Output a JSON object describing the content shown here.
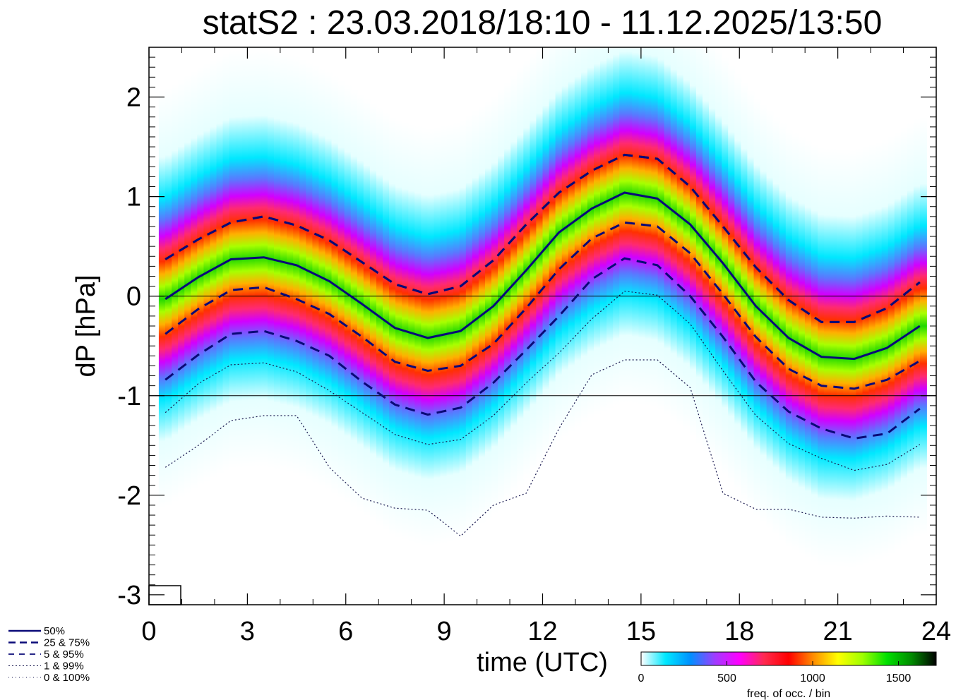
{
  "chart_data": {
    "type": "line",
    "title": "statS2 : 23.03.2018/18:10 - 11.12.2025/13:50",
    "xlabel": "time (UTC)",
    "ylabel": "dP [hPa]",
    "xlim": [
      0,
      24
    ],
    "ylim": [
      -3.1,
      2.5
    ],
    "xticks": [
      "0",
      "3",
      "6",
      "9",
      "12",
      "15",
      "18",
      "21",
      "24"
    ],
    "xtick_values": [
      0,
      3,
      6,
      9,
      12,
      15,
      18,
      21,
      24
    ],
    "yticks": [
      "2",
      "1",
      "0",
      "-1",
      "-2",
      "-3"
    ],
    "ytick_values": [
      2,
      1,
      0,
      -1,
      -2,
      -3
    ],
    "reference_lines": [
      0,
      -1
    ],
    "x": [
      0.5,
      1.5,
      2.5,
      3.5,
      4.5,
      5.5,
      6.5,
      7.5,
      8.5,
      9.5,
      10.5,
      11.5,
      12.5,
      13.5,
      14.5,
      15.5,
      16.5,
      17.5,
      18.5,
      19.5,
      20.5,
      21.5,
      22.5,
      23.5
    ],
    "series": [
      {
        "name": "50%",
        "style": "solid",
        "values": [
          -0.03,
          0.19,
          0.37,
          0.39,
          0.31,
          0.15,
          -0.08,
          -0.32,
          -0.42,
          -0.35,
          -0.1,
          0.26,
          0.64,
          0.88,
          1.04,
          0.98,
          0.72,
          0.33,
          -0.1,
          -0.42,
          -0.61,
          -0.63,
          -0.52,
          -0.3
        ]
      },
      {
        "name": "25%",
        "style": "dashed",
        "values": [
          -0.38,
          -0.13,
          0.06,
          0.09,
          -0.03,
          -0.18,
          -0.41,
          -0.66,
          -0.75,
          -0.7,
          -0.48,
          -0.12,
          0.27,
          0.58,
          0.74,
          0.7,
          0.43,
          0.02,
          -0.41,
          -0.73,
          -0.9,
          -0.93,
          -0.84,
          -0.65
        ]
      },
      {
        "name": "75%",
        "style": "dashed",
        "values": [
          0.37,
          0.57,
          0.74,
          0.8,
          0.71,
          0.56,
          0.34,
          0.12,
          0.02,
          0.1,
          0.36,
          0.72,
          1.04,
          1.26,
          1.42,
          1.38,
          1.1,
          0.7,
          0.29,
          -0.04,
          -0.26,
          -0.26,
          -0.12,
          0.14
        ]
      },
      {
        "name": "5%",
        "style": "dashed",
        "values": [
          -0.84,
          -0.59,
          -0.38,
          -0.35,
          -0.45,
          -0.6,
          -0.86,
          -1.09,
          -1.19,
          -1.12,
          -0.87,
          -0.54,
          -0.2,
          0.17,
          0.38,
          0.31,
          0.0,
          -0.41,
          -0.86,
          -1.16,
          -1.33,
          -1.43,
          -1.38,
          -1.13
        ]
      },
      {
        "name": "95%",
        "style": "dashed",
        "values": [
          0.37,
          0.57,
          0.74,
          0.8,
          0.71,
          0.56,
          0.34,
          0.12,
          0.02,
          0.1,
          0.36,
          0.72,
          1.04,
          1.26,
          1.42,
          1.38,
          1.1,
          0.7,
          0.29,
          -0.04,
          -0.26,
          -0.26,
          -0.12,
          0.14
        ]
      },
      {
        "name": "1%",
        "style": "dotted",
        "values": [
          -1.17,
          -0.88,
          -0.69,
          -0.67,
          -0.76,
          -0.95,
          -1.17,
          -1.39,
          -1.49,
          -1.44,
          -1.2,
          -0.87,
          -0.57,
          -0.23,
          0.05,
          0.01,
          -0.28,
          -0.75,
          -1.2,
          -1.48,
          -1.63,
          -1.75,
          -1.69,
          -1.49
        ]
      },
      {
        "name": "0%",
        "style": "dotted",
        "values": [
          -1.72,
          -1.5,
          -1.25,
          -1.2,
          -1.2,
          -1.72,
          -2.03,
          -2.13,
          -2.15,
          -2.41,
          -2.1,
          -1.98,
          -1.33,
          -0.79,
          -0.64,
          -0.64,
          -0.92,
          -1.98,
          -2.14,
          -2.14,
          -2.22,
          -2.23,
          -2.21,
          -2.22
        ]
      }
    ],
    "legend": [
      "50%",
      "25 &  75%",
      "5 &  95%",
      "1 &  99%",
      "0 & 100%"
    ],
    "colorbar": {
      "ticks": [
        "0",
        "500",
        "1000",
        "1500"
      ],
      "tick_values": [
        0,
        500,
        1000,
        1500
      ],
      "max": 1720,
      "label": "freq. of occ. / bin",
      "colors": [
        "#ffffff",
        "#00e8ff",
        "#0090ff",
        "#9f3cff",
        "#ff00ff",
        "#ff2a50",
        "#ff0000",
        "#ff8c00",
        "#ffff00",
        "#9fff00",
        "#00e000",
        "#008a00",
        "#000000"
      ]
    },
    "colors": {
      "line": "#0a0a78",
      "reference": "#000000"
    }
  }
}
